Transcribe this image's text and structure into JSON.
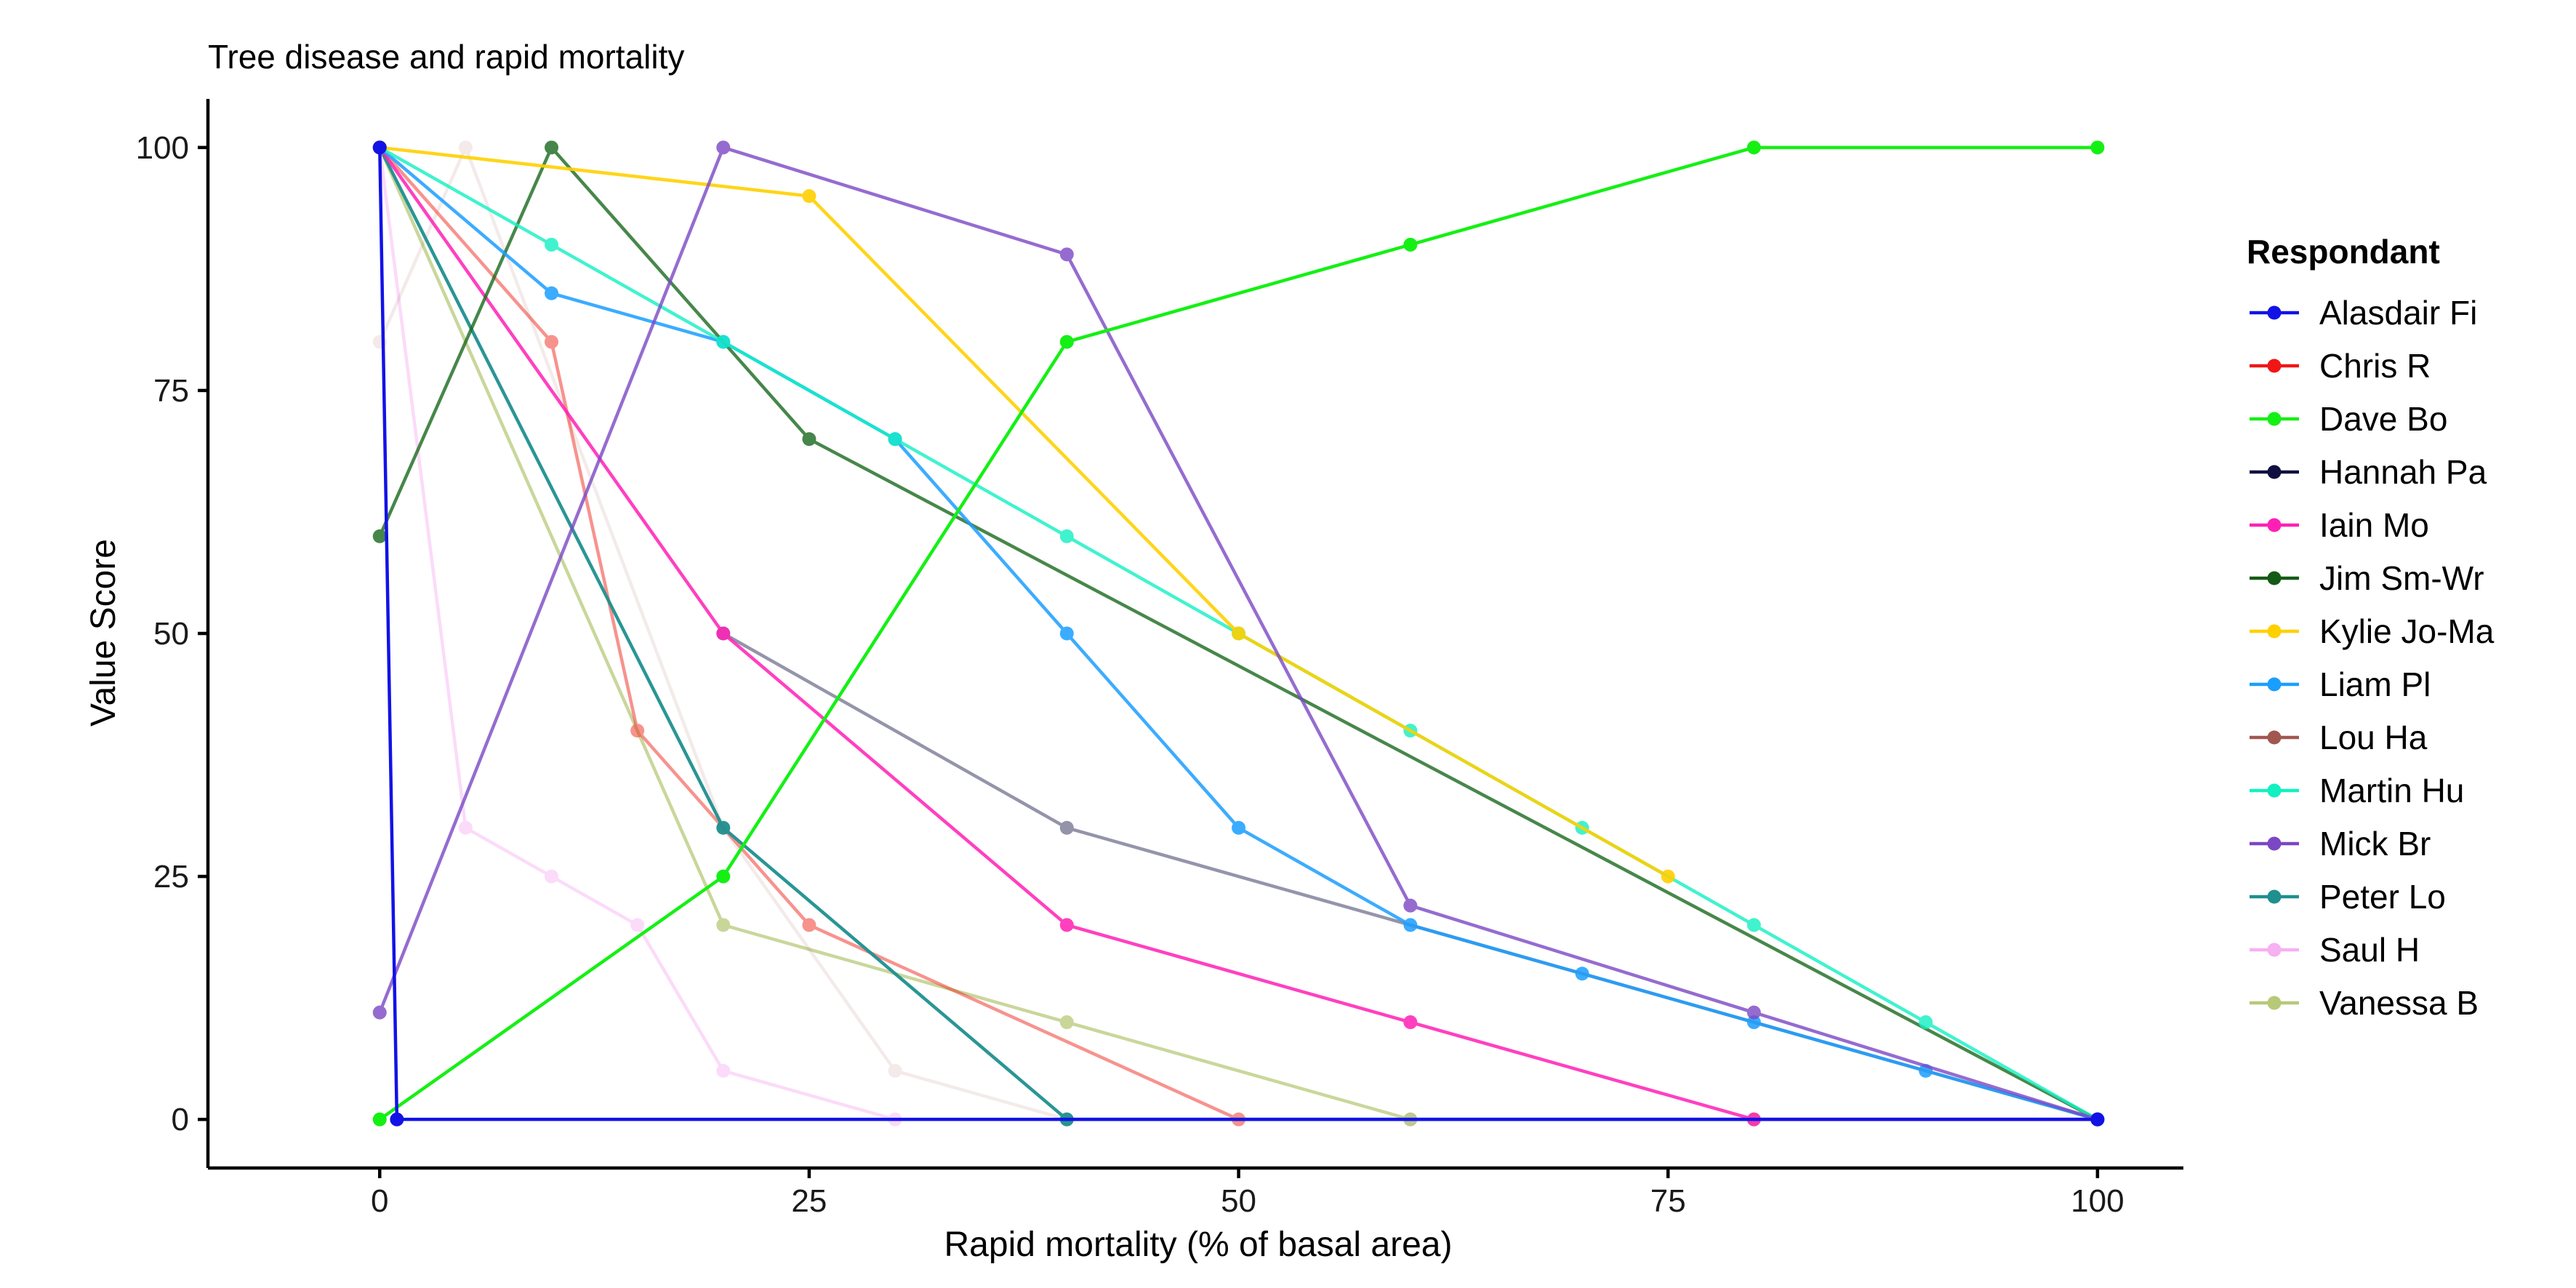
{
  "chart_data": {
    "type": "line",
    "title": "Tree disease and rapid mortality",
    "xlabel": "Rapid mortality (% of basal area)",
    "ylabel": "Value Score",
    "xlim": [
      -10,
      105
    ],
    "ylim": [
      -5,
      105
    ],
    "xticks": [
      0,
      25,
      50,
      75,
      100
    ],
    "yticks": [
      0,
      25,
      50,
      75,
      100
    ],
    "grid": false,
    "legend": {
      "title": "Respondant",
      "position": "right"
    },
    "series": [
      {
        "name": "Vanessa B",
        "color": "#b7c979",
        "opacity": 0.75,
        "x": [
          0,
          20,
          40,
          60,
          80,
          100
        ],
        "y": [
          100,
          20,
          10,
          0,
          0,
          0
        ]
      },
      {
        "name": "Saul H",
        "color": "#f7b0f2",
        "opacity": 0.45,
        "x": [
          0,
          5,
          10,
          15,
          20,
          30
        ],
        "y": [
          100,
          30,
          25,
          20,
          5,
          0
        ]
      },
      {
        "name": "Lou Ha",
        "color": "#a0574f",
        "opacity": 0.12,
        "x": [
          0,
          5,
          20,
          30,
          40,
          60,
          100
        ],
        "y": [
          80,
          100,
          30,
          5,
          0,
          0,
          0
        ]
      },
      {
        "name": "Chris R",
        "color": "#f0281e",
        "opacity": 0.5,
        "x": [
          0,
          10,
          15,
          25,
          50
        ],
        "y": [
          100,
          80,
          40,
          20,
          0
        ]
      },
      {
        "name": "Peter Lo",
        "color": "#1f8f8f",
        "opacity": 0.95,
        "x": [
          0,
          20,
          40,
          100
        ],
        "y": [
          100,
          30,
          0,
          0
        ]
      },
      {
        "name": "Hannah Pa",
        "color": "#2a2a55",
        "opacity": 0.5,
        "x": [
          20,
          40,
          100
        ],
        "y": [
          50,
          30,
          0
        ]
      },
      {
        "name": "Iain Mo",
        "color": "#ff1fb5",
        "opacity": 0.85,
        "x": [
          0,
          20,
          40,
          60,
          80,
          100
        ],
        "y": [
          100,
          50,
          20,
          10,
          0,
          0
        ]
      },
      {
        "name": "Jim Sm-Wr",
        "color": "#19691d",
        "opacity": 0.8,
        "x": [
          0,
          10,
          25,
          100
        ],
        "y": [
          60,
          100,
          70,
          0
        ]
      },
      {
        "name": "Liam Pl",
        "color": "#1a9eff",
        "opacity": 0.85,
        "x": [
          0,
          10,
          20,
          30,
          40,
          50,
          60,
          70,
          80,
          90,
          100
        ],
        "y": [
          100,
          85,
          80,
          70,
          50,
          30,
          20,
          15,
          10,
          5,
          0
        ]
      },
      {
        "name": "Martin Hu",
        "color": "#12f0c2",
        "opacity": 0.8,
        "x": [
          0,
          10,
          20,
          30,
          40,
          50,
          60,
          70,
          80,
          90,
          100
        ],
        "y": [
          100,
          90,
          80,
          70,
          60,
          50,
          40,
          30,
          20,
          10,
          0
        ]
      },
      {
        "name": "Kylie Jo-Ma",
        "color": "#ffd000",
        "opacity": 0.9,
        "x": [
          0,
          25,
          50,
          75
        ],
        "y": [
          100,
          95,
          50,
          25
        ]
      },
      {
        "name": "Mick Br",
        "color": "#7b47c4",
        "opacity": 0.8,
        "x": [
          0,
          20,
          40,
          60,
          80,
          100
        ],
        "y": [
          11,
          100,
          89,
          22,
          11,
          0
        ]
      },
      {
        "name": "Dave Bo",
        "color": "#14f014",
        "opacity": 1,
        "x": [
          0,
          20,
          40,
          60,
          80,
          100
        ],
        "y": [
          0,
          25,
          80,
          90,
          100,
          100
        ]
      },
      {
        "name": "Alasdair Fi",
        "color": "#1212e6",
        "opacity": 1,
        "x": [
          0,
          1,
          100
        ],
        "y": [
          100,
          0,
          0
        ]
      }
    ],
    "legend_order": [
      "Alasdair Fi",
      "Chris R",
      "Dave Bo",
      "Hannah Pa",
      "Iain Mo",
      "Jim Sm-Wr",
      "Kylie Jo-Ma",
      "Liam Pl",
      "Lou Ha",
      "Martin Hu",
      "Mick Br",
      "Peter Lo",
      "Saul H",
      "Vanessa B"
    ],
    "legend_colors": {
      "Alasdair Fi": "#1212e6",
      "Chris R": "#f01616",
      "Dave Bo": "#14f014",
      "Hannah Pa": "#101040",
      "Iain Mo": "#ff1fb5",
      "Jim Sm-Wr": "#145a17",
      "Kylie Jo-Ma": "#ffd000",
      "Liam Pl": "#1a9eff",
      "Lou Ha": "#a0574f",
      "Martin Hu": "#12f0c2",
      "Mick Br": "#7b47c4",
      "Peter Lo": "#1f8f8f",
      "Saul H": "#f7b0f2",
      "Vanessa B": "#b7c979"
    }
  }
}
